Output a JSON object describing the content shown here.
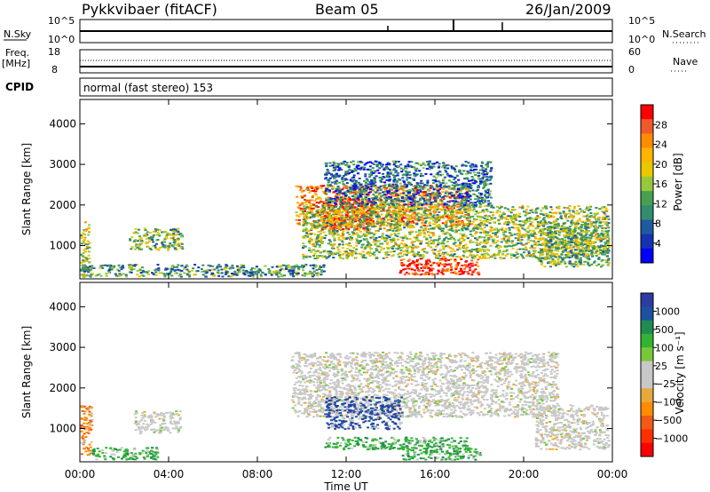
{
  "header": {
    "title": "Pykkvibaer (fitACF)",
    "beam": "Beam 05",
    "date": "26/Jan/2009"
  },
  "top_panels": {
    "nsky_label": "N.Sky",
    "nsky_ticks": [
      "10^5",
      "10^0"
    ],
    "nsearch_label": "N.Search",
    "nsearch_ticks": [
      "10^5",
      "10^0"
    ],
    "freq_label": "Freq.",
    "freq_unit": "[MHz]",
    "freq_ticks": [
      "18",
      "8"
    ],
    "nave_label": "Nave",
    "nave_ticks": [
      "60",
      "0"
    ],
    "cpid_label": "CPID",
    "cpid_value": "normal (fast stereo) 153"
  },
  "chart_data": [
    {
      "type": "heatmap",
      "name": "power",
      "ylabel": "Slant Range [km]",
      "y_ticks": [
        "4000",
        "3000",
        "2000",
        "1000"
      ],
      "ylim": [
        180,
        4600
      ],
      "x_ticks": [
        "00:00",
        "04:00",
        "08:00",
        "12:00",
        "16:00",
        "20:00",
        "00:00"
      ],
      "xlim_hours": [
        0,
        24
      ],
      "colorbar": {
        "label": "Power [dB]",
        "ticks": [
          "28",
          "24",
          "20",
          "16",
          "12",
          "8",
          "4"
        ],
        "colors": [
          "#ff0000",
          "#f05a28",
          "#ff8c00",
          "#ffb400",
          "#e8c800",
          "#96c83c",
          "#46a050",
          "#328c6e",
          "#1e5aa0",
          "#1432b4",
          "#0000ff"
        ]
      },
      "regions": [
        {
          "t": [
            0.0,
            0.4
          ],
          "r": [
            300,
            1600
          ],
          "level": 0.55
        },
        {
          "t": [
            0.0,
            11.0
          ],
          "r": [
            250,
            550
          ],
          "level": 0.35
        },
        {
          "t": [
            2.2,
            4.6
          ],
          "r": [
            900,
            1450
          ],
          "level": 0.45
        },
        {
          "t": [
            9.7,
            17.5
          ],
          "r": [
            1500,
            2500
          ],
          "level": 0.75
        },
        {
          "t": [
            10.8,
            13.2
          ],
          "r": [
            1400,
            2200
          ],
          "level": 0.9
        },
        {
          "t": [
            10.0,
            23.8
          ],
          "r": [
            700,
            2000
          ],
          "level": 0.5
        },
        {
          "t": [
            14.3,
            18.0
          ],
          "r": [
            300,
            700
          ],
          "level": 0.95
        },
        {
          "t": [
            11.0,
            18.5
          ],
          "r": [
            2000,
            3100
          ],
          "level": 0.25
        },
        {
          "t": [
            20.6,
            23.8
          ],
          "r": [
            500,
            1600
          ],
          "level": 0.45
        }
      ]
    },
    {
      "type": "heatmap",
      "name": "velocity",
      "ylabel": "Slant Range [km]",
      "y_ticks": [
        "4000",
        "3000",
        "2000",
        "1000"
      ],
      "ylim": [
        180,
        4600
      ],
      "x_ticks": [
        "00:00",
        "04:00",
        "08:00",
        "12:00",
        "16:00",
        "20:00",
        "00:00"
      ],
      "xlim_hours": [
        0,
        24
      ],
      "xlabel": "Time UT",
      "colorbar": {
        "label": "Velocity [m s⁻¹]",
        "ticks": [
          "1000",
          "500",
          "100",
          "25",
          "−25",
          "−100",
          "−500",
          "−1000"
        ],
        "colors": [
          "#2c3ca0",
          "#1e50a0",
          "#1e8c50",
          "#32b432",
          "#78c83c",
          "#c8c8c8",
          "#c8c8c8",
          "#e6aa3c",
          "#ff8c00",
          "#f05a14",
          "#ff3000",
          "#ff0000"
        ]
      },
      "regions": [
        {
          "t": [
            0.0,
            0.5
          ],
          "r": [
            300,
            1600
          ],
          "kind": "orange"
        },
        {
          "t": [
            0.4,
            3.5
          ],
          "r": [
            250,
            550
          ],
          "kind": "green"
        },
        {
          "t": [
            2.4,
            4.5
          ],
          "r": [
            900,
            1450
          ],
          "kind": "grey"
        },
        {
          "t": [
            9.5,
            21.5
          ],
          "r": [
            1300,
            2900
          ],
          "kind": "grey"
        },
        {
          "t": [
            11.0,
            14.5
          ],
          "r": [
            1000,
            1800
          ],
          "kind": "blue"
        },
        {
          "t": [
            11.0,
            17.5
          ],
          "r": [
            500,
            800
          ],
          "kind": "green"
        },
        {
          "t": [
            14.5,
            18.0
          ],
          "r": [
            250,
            550
          ],
          "kind": "green"
        },
        {
          "t": [
            20.5,
            23.8
          ],
          "r": [
            500,
            1600
          ],
          "kind": "grey"
        }
      ]
    }
  ]
}
